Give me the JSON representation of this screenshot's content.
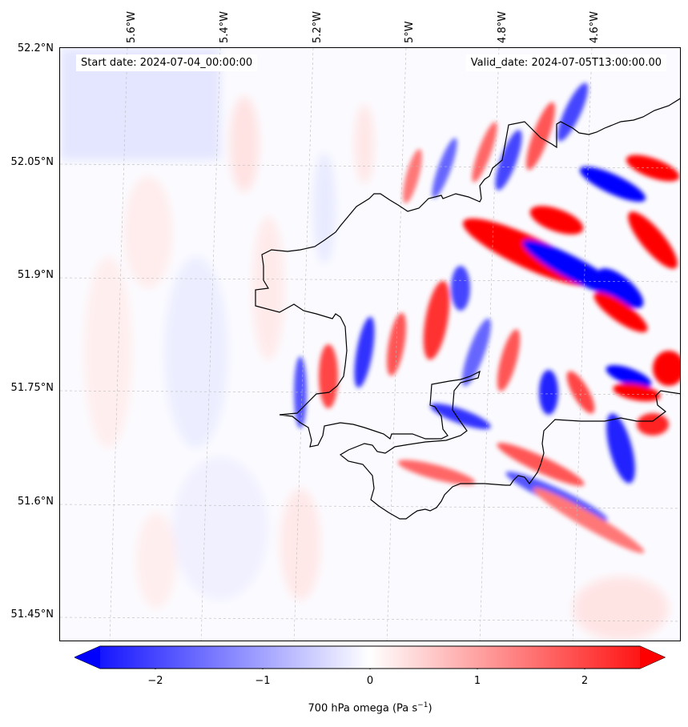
{
  "header": {
    "start_date": "Start date: 2024-07-04_00:00:00",
    "valid_date": "Valid_date: 2024-07-05T13:00:00.00"
  },
  "axes": {
    "lat_labels": [
      "52.2°N",
      "52.05°N",
      "51.9°N",
      "51.75°N",
      "51.6°N",
      "51.45°N"
    ],
    "lon_labels": [
      "5.6°W",
      "5.4°W",
      "5.2°W",
      "5°W",
      "4.8°W",
      "4.6°W"
    ]
  },
  "colorbar": {
    "ticks": [
      "−2",
      "−1",
      "0",
      "1",
      "2"
    ],
    "label": "700 hPa omega (Pa s",
    "label_sup": "−1",
    "label_end": ")",
    "colors": {
      "neg": "#0000ff",
      "mid": "#ffffff",
      "pos": "#ff0000"
    }
  },
  "map": {
    "coastline_color": "#000000",
    "gridlines": true
  }
}
